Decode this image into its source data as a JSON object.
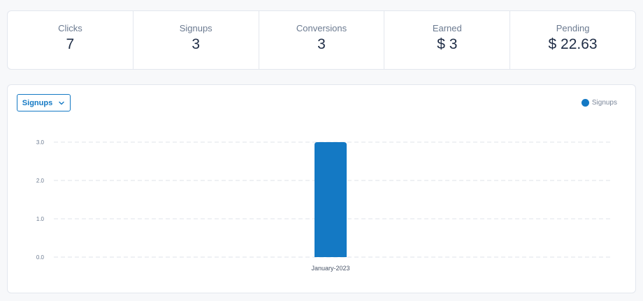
{
  "stats": [
    {
      "label": "Clicks",
      "value": "7"
    },
    {
      "label": "Signups",
      "value": "3"
    },
    {
      "label": "Conversions",
      "value": "3"
    },
    {
      "label": "Earned",
      "value": "$ 3"
    },
    {
      "label": "Pending",
      "value": "$ 22.63"
    }
  ],
  "chart_controls": {
    "metric_select": "Signups",
    "metric_select_icon": "chevron-down-icon"
  },
  "colors": {
    "accent": "#1479c4",
    "bar": "#1479c4",
    "grid": "#dfe3ea"
  },
  "chart_data": {
    "type": "bar",
    "categories": [
      "January-2023"
    ],
    "series": [
      {
        "name": "Signups",
        "values": [
          3
        ]
      }
    ],
    "title": "",
    "xlabel": "",
    "ylabel": "",
    "ylim": [
      0,
      3
    ],
    "yticks": [
      "0.0",
      "1.0",
      "2.0",
      "3.0"
    ],
    "grid": true,
    "legend_position": "top-right"
  }
}
